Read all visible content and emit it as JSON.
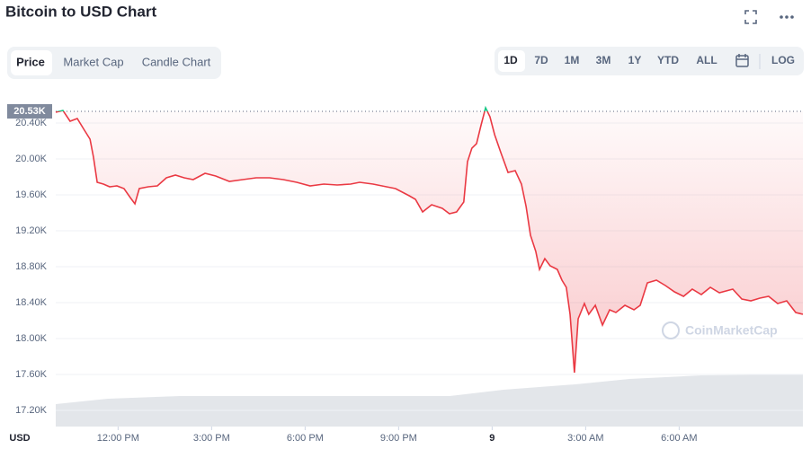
{
  "chart_data": {
    "type": "line",
    "title": "Bitcoin to USD Chart",
    "tabs": [
      "Price",
      "Market Cap",
      "Candle Chart"
    ],
    "active_tab_index": 0,
    "ranges": [
      "1D",
      "7D",
      "1M",
      "3M",
      "1Y",
      "YTD",
      "ALL"
    ],
    "active_range_index": 0,
    "log_button": "LOG",
    "y_axis_label": "USD",
    "watermark": "CoinMarketCap",
    "color": "#ea3943",
    "up_color": "#16c784",
    "reference": {
      "value": 20530,
      "label": "20.53K"
    },
    "x": [
      10.0,
      10.23,
      10.46,
      10.69,
      10.92,
      11.1,
      11.21,
      11.33,
      11.53,
      11.73,
      11.96,
      12.19,
      12.39,
      12.54,
      12.68,
      12.97,
      13.26,
      13.55,
      13.84,
      14.12,
      14.41,
      14.79,
      15.13,
      15.57,
      16.0,
      16.43,
      16.86,
      17.3,
      17.73,
      18.16,
      18.6,
      19.03,
      19.46,
      19.75,
      20.18,
      20.61,
      20.9,
      21.34,
      21.54,
      21.77,
      22.06,
      22.4,
      22.63,
      22.86,
      23.09,
      23.21,
      23.35,
      23.5,
      23.64,
      23.79,
      23.93,
      24.08,
      24.28,
      24.51,
      24.74,
      24.94,
      25.09,
      25.23,
      25.4,
      25.52,
      25.69,
      25.86,
      26.09,
      26.24,
      26.38,
      26.5,
      26.64,
      26.76,
      26.96,
      27.1,
      27.31,
      27.54,
      27.77,
      27.97,
      28.26,
      28.55,
      28.75,
      28.98,
      29.27,
      29.56,
      29.85,
      30.14,
      30.42,
      30.71,
      31.0,
      31.29,
      31.72,
      32.01,
      32.3,
      32.59,
      32.87,
      33.16,
      33.45,
      33.74,
      33.97
    ],
    "series": [
      {
        "name": "Price",
        "color": "#ea3943",
        "values": [
          20520,
          20540,
          20420,
          20450,
          20320,
          20220,
          20020,
          19740,
          19720,
          19690,
          19700,
          19670,
          19570,
          19500,
          19670,
          19690,
          19700,
          19790,
          19820,
          19790,
          19770,
          19840,
          19810,
          19750,
          19770,
          19790,
          19790,
          19770,
          19740,
          19700,
          19720,
          19710,
          19720,
          19740,
          19720,
          19690,
          19670,
          19590,
          19550,
          19410,
          19490,
          19450,
          19390,
          19410,
          19520,
          19970,
          20120,
          20170,
          20370,
          20570,
          20470,
          20270,
          20070,
          19850,
          19870,
          19720,
          19470,
          19150,
          18970,
          18770,
          18890,
          18810,
          18770,
          18650,
          18570,
          18270,
          17620,
          18220,
          18390,
          18270,
          18370,
          18150,
          18320,
          18290,
          18370,
          18320,
          18370,
          18620,
          18650,
          18590,
          18520,
          18470,
          18550,
          18490,
          18570,
          18510,
          18550,
          18440,
          18420,
          18450,
          18470,
          18390,
          18420,
          18290,
          18270
        ]
      }
    ],
    "xlim": [
      10,
      33.97
    ],
    "xticks": [
      {
        "value": 12,
        "label": "12:00 PM"
      },
      {
        "value": 15,
        "label": "3:00 PM"
      },
      {
        "value": 18,
        "label": "6:00 PM"
      },
      {
        "value": 21,
        "label": "9:00 PM"
      },
      {
        "value": 24,
        "label": "9"
      },
      {
        "value": 27,
        "label": "3:00 AM"
      },
      {
        "value": 30,
        "label": "6:00 AM"
      }
    ],
    "ylim": [
      17020,
      20670
    ],
    "yticks": [
      {
        "value": 17200,
        "label": "17.20K"
      },
      {
        "value": 17600,
        "label": "17.60K"
      },
      {
        "value": 18000,
        "label": "18.00K"
      },
      {
        "value": 18400,
        "label": "18.40K"
      },
      {
        "value": 18800,
        "label": "18.80K"
      },
      {
        "value": 19200,
        "label": "19.20K"
      },
      {
        "value": 19600,
        "label": "19.60K"
      },
      {
        "value": 20000,
        "label": "20.00K"
      },
      {
        "value": 20400,
        "label": "20.40K"
      }
    ],
    "grid": true
  }
}
